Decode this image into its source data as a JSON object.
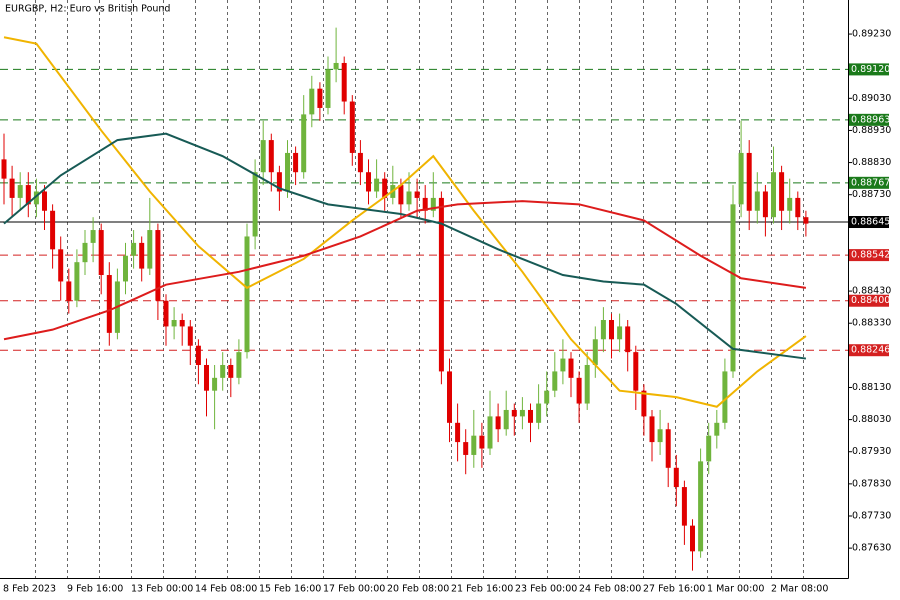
{
  "chart_data": {
    "type": "candlestick",
    "title": "EURGBP, H2:  Euro vs British Pound",
    "up_color": "#6fb43c",
    "down_color": "#e00000",
    "ylim": [
      0.87537,
      0.89336
    ],
    "yticks": [
      {
        "value": 0.8923,
        "label": "0.89230"
      },
      {
        "value": 0.8903,
        "label": "0.89030"
      },
      {
        "value": 0.8893,
        "label": "0.88930"
      },
      {
        "value": 0.8883,
        "label": "0.88830"
      },
      {
        "value": 0.8873,
        "label": "0.88730"
      },
      {
        "value": 0.8843,
        "label": "0.88430"
      },
      {
        "value": 0.8833,
        "label": "0.88330"
      },
      {
        "value": 0.8813,
        "label": "0.88130"
      },
      {
        "value": 0.8803,
        "label": "0.88030"
      },
      {
        "value": 0.8793,
        "label": "0.87930"
      },
      {
        "value": 0.8783,
        "label": "0.87830"
      },
      {
        "value": 0.8773,
        "label": "0.87730"
      },
      {
        "value": 0.8763,
        "label": "0.87630"
      }
    ],
    "categories": [
      "8 Feb 2023",
      "9 Feb 16:00",
      "13 Feb 00:00",
      "14 Feb 08:00",
      "15 Feb 16:00",
      "17 Feb 00:00",
      "20 Feb 08:00",
      "21 Feb 16:00",
      "23 Feb 00:00",
      "24 Feb 08:00",
      "27 Feb 16:00",
      "1 Mar 00:00",
      "2 Mar 08:00"
    ],
    "levels": [
      {
        "value": 0.8912,
        "label": "0.89120",
        "color": "#1a7a1a",
        "style": "dashed"
      },
      {
        "value": 0.88963,
        "label": "0.88963",
        "color": "#1a7a1a",
        "style": "dashed"
      },
      {
        "value": 0.88767,
        "label": "0.88767",
        "color": "#1a7a1a",
        "style": "dashed"
      },
      {
        "value": 0.88645,
        "label": "0.88645",
        "color": "#000000",
        "style": "solid"
      },
      {
        "value": 0.88542,
        "label": "0.88542",
        "color": "#d42020",
        "style": "dashed"
      },
      {
        "value": 0.884,
        "label": "0.88400",
        "color": "#d42020",
        "style": "dashed"
      },
      {
        "value": 0.88246,
        "label": "0.88246",
        "color": "#d42020",
        "style": "dashed"
      }
    ],
    "candles": [
      [
        0.8884,
        0.8892,
        0.887,
        0.8878
      ],
      [
        0.8878,
        0.8882,
        0.8866,
        0.8872
      ],
      [
        0.8872,
        0.888,
        0.8868,
        0.8876
      ],
      [
        0.8876,
        0.888,
        0.8866,
        0.887
      ],
      [
        0.887,
        0.8878,
        0.8866,
        0.8874
      ],
      [
        0.8874,
        0.8876,
        0.8862,
        0.8868
      ],
      [
        0.8868,
        0.887,
        0.885,
        0.8856
      ],
      [
        0.8856,
        0.886,
        0.884,
        0.8846
      ],
      [
        0.8846,
        0.885,
        0.8836,
        0.884
      ],
      [
        0.884,
        0.8856,
        0.8838,
        0.8852
      ],
      [
        0.8852,
        0.8862,
        0.8848,
        0.8858
      ],
      [
        0.8858,
        0.8866,
        0.8852,
        0.8862
      ],
      [
        0.8862,
        0.8864,
        0.8842,
        0.8848
      ],
      [
        0.8848,
        0.8852,
        0.8826,
        0.883
      ],
      [
        0.883,
        0.885,
        0.8828,
        0.8846
      ],
      [
        0.8846,
        0.8858,
        0.8842,
        0.8854
      ],
      [
        0.8854,
        0.8862,
        0.885,
        0.8858
      ],
      [
        0.8858,
        0.886,
        0.8846,
        0.885
      ],
      [
        0.885,
        0.8872,
        0.8848,
        0.8862
      ],
      [
        0.8862,
        0.8864,
        0.8834,
        0.884
      ],
      [
        0.884,
        0.8842,
        0.8826,
        0.8832
      ],
      [
        0.8832,
        0.8838,
        0.8828,
        0.8834
      ],
      [
        0.8834,
        0.8836,
        0.8826,
        0.8832
      ],
      [
        0.8832,
        0.8834,
        0.882,
        0.8826
      ],
      [
        0.8826,
        0.8828,
        0.8814,
        0.882
      ],
      [
        0.882,
        0.8822,
        0.8804,
        0.8812
      ],
      [
        0.8812,
        0.882,
        0.88,
        0.8816
      ],
      [
        0.8816,
        0.8824,
        0.8812,
        0.882
      ],
      [
        0.882,
        0.8822,
        0.881,
        0.8816
      ],
      [
        0.8816,
        0.8828,
        0.8814,
        0.8824
      ],
      [
        0.8824,
        0.8864,
        0.8822,
        0.886
      ],
      [
        0.886,
        0.8884,
        0.8856,
        0.888
      ],
      [
        0.888,
        0.8896,
        0.8876,
        0.889
      ],
      [
        0.889,
        0.8892,
        0.8874,
        0.888
      ],
      [
        0.888,
        0.8882,
        0.8868,
        0.8874
      ],
      [
        0.8874,
        0.889,
        0.8872,
        0.8886
      ],
      [
        0.8886,
        0.8888,
        0.8876,
        0.888
      ],
      [
        0.888,
        0.8904,
        0.8878,
        0.8898
      ],
      [
        0.8898,
        0.891,
        0.8894,
        0.8906
      ],
      [
        0.8906,
        0.8908,
        0.8896,
        0.89
      ],
      [
        0.89,
        0.8916,
        0.8898,
        0.8912
      ],
      [
        0.8912,
        0.8925,
        0.8908,
        0.8914
      ],
      [
        0.8914,
        0.8916,
        0.8898,
        0.8902
      ],
      [
        0.8902,
        0.8904,
        0.8882,
        0.8886
      ],
      [
        0.8886,
        0.889,
        0.8876,
        0.888
      ],
      [
        0.888,
        0.8884,
        0.887,
        0.8874
      ],
      [
        0.8874,
        0.8884,
        0.8872,
        0.8878
      ],
      [
        0.8878,
        0.888,
        0.8868,
        0.8872
      ],
      [
        0.8872,
        0.8882,
        0.887,
        0.8876
      ],
      [
        0.8876,
        0.8878,
        0.8866,
        0.887
      ],
      [
        0.887,
        0.888,
        0.8868,
        0.8874
      ],
      [
        0.8874,
        0.8878,
        0.8866,
        0.8872
      ],
      [
        0.8872,
        0.8876,
        0.8864,
        0.8868
      ],
      [
        0.8868,
        0.888,
        0.8866,
        0.8872
      ],
      [
        0.8872,
        0.8874,
        0.8814,
        0.8818
      ],
      [
        0.8818,
        0.8822,
        0.8796,
        0.8802
      ],
      [
        0.8802,
        0.8808,
        0.879,
        0.8796
      ],
      [
        0.8796,
        0.88,
        0.8786,
        0.8792
      ],
      [
        0.8792,
        0.8806,
        0.8788,
        0.8798
      ],
      [
        0.8798,
        0.8802,
        0.8788,
        0.8794
      ],
      [
        0.8794,
        0.8812,
        0.8792,
        0.8804
      ],
      [
        0.8804,
        0.8808,
        0.8796,
        0.88
      ],
      [
        0.88,
        0.8812,
        0.8798,
        0.8806
      ],
      [
        0.8806,
        0.8808,
        0.8798,
        0.8804
      ],
      [
        0.8804,
        0.881,
        0.88,
        0.8806
      ],
      [
        0.8806,
        0.8808,
        0.8796,
        0.8802
      ],
      [
        0.8802,
        0.8814,
        0.88,
        0.8808
      ],
      [
        0.8808,
        0.8818,
        0.8804,
        0.8812
      ],
      [
        0.8812,
        0.8824,
        0.881,
        0.8818
      ],
      [
        0.8818,
        0.8828,
        0.8814,
        0.8822
      ],
      [
        0.8822,
        0.8824,
        0.881,
        0.8816
      ],
      [
        0.8816,
        0.8818,
        0.8802,
        0.8808
      ],
      [
        0.8808,
        0.8824,
        0.8806,
        0.882
      ],
      [
        0.882,
        0.8832,
        0.8816,
        0.8828
      ],
      [
        0.8828,
        0.8838,
        0.8824,
        0.8834
      ],
      [
        0.8834,
        0.8836,
        0.8822,
        0.8828
      ],
      [
        0.8828,
        0.8836,
        0.8824,
        0.8832
      ],
      [
        0.8832,
        0.8834,
        0.8818,
        0.8824
      ],
      [
        0.8824,
        0.8826,
        0.8806,
        0.8812
      ],
      [
        0.8812,
        0.8814,
        0.8798,
        0.8804
      ],
      [
        0.8804,
        0.8806,
        0.879,
        0.8796
      ],
      [
        0.8796,
        0.8806,
        0.8792,
        0.88
      ],
      [
        0.88,
        0.8802,
        0.8782,
        0.8788
      ],
      [
        0.8788,
        0.8792,
        0.8776,
        0.8782
      ],
      [
        0.8782,
        0.8784,
        0.8764,
        0.877
      ],
      [
        0.877,
        0.8772,
        0.8756,
        0.8762
      ],
      [
        0.8762,
        0.8794,
        0.876,
        0.879
      ],
      [
        0.879,
        0.8802,
        0.8786,
        0.8798
      ],
      [
        0.8798,
        0.8806,
        0.8794,
        0.8802
      ],
      [
        0.8802,
        0.8822,
        0.88,
        0.8818
      ],
      [
        0.8818,
        0.8876,
        0.8816,
        0.887
      ],
      [
        0.887,
        0.8896,
        0.8866,
        0.8886
      ],
      [
        0.8886,
        0.889,
        0.8862,
        0.8868
      ],
      [
        0.8868,
        0.888,
        0.8864,
        0.8874
      ],
      [
        0.8874,
        0.8876,
        0.886,
        0.8866
      ],
      [
        0.8866,
        0.8888,
        0.8864,
        0.888
      ],
      [
        0.888,
        0.8882,
        0.8862,
        0.8868
      ],
      [
        0.8868,
        0.8878,
        0.8864,
        0.8872
      ],
      [
        0.8872,
        0.8874,
        0.8862,
        0.8866
      ],
      [
        0.8866,
        0.8868,
        0.886,
        0.8864
      ]
    ],
    "series": [
      {
        "color": "#f0b400",
        "x": [
          0,
          4,
          12,
          18,
          24,
          30,
          37,
          43,
          49,
          53,
          58,
          64,
          70,
          76,
          83,
          88,
          93,
          99
        ],
        "values": [
          0.8922,
          0.892,
          0.8893,
          0.8874,
          0.8857,
          0.8844,
          0.8853,
          0.8865,
          0.8876,
          0.8885,
          0.8868,
          0.8849,
          0.8828,
          0.8812,
          0.881,
          0.8807,
          0.8818,
          0.8829
        ]
      },
      {
        "color": "#175a55",
        "x": [
          0,
          7,
          14,
          20,
          27,
          34,
          40,
          49,
          54,
          61,
          69,
          74,
          79,
          83,
          90,
          99
        ],
        "values": [
          0.8864,
          0.8879,
          0.889,
          0.8892,
          0.8885,
          0.8875,
          0.887,
          0.8867,
          0.8864,
          0.8856,
          0.8848,
          0.8846,
          0.8845,
          0.8839,
          0.8825,
          0.8822
        ]
      },
      {
        "color": "#dd1c1c",
        "x": [
          0,
          6,
          13,
          20,
          29,
          37,
          44,
          51,
          56,
          64,
          71,
          79,
          86,
          91,
          99
        ],
        "values": [
          0.8828,
          0.8831,
          0.8837,
          0.8845,
          0.8849,
          0.8854,
          0.886,
          0.8868,
          0.887,
          0.8871,
          0.887,
          0.8865,
          0.8854,
          0.8847,
          0.8844
        ]
      }
    ]
  }
}
